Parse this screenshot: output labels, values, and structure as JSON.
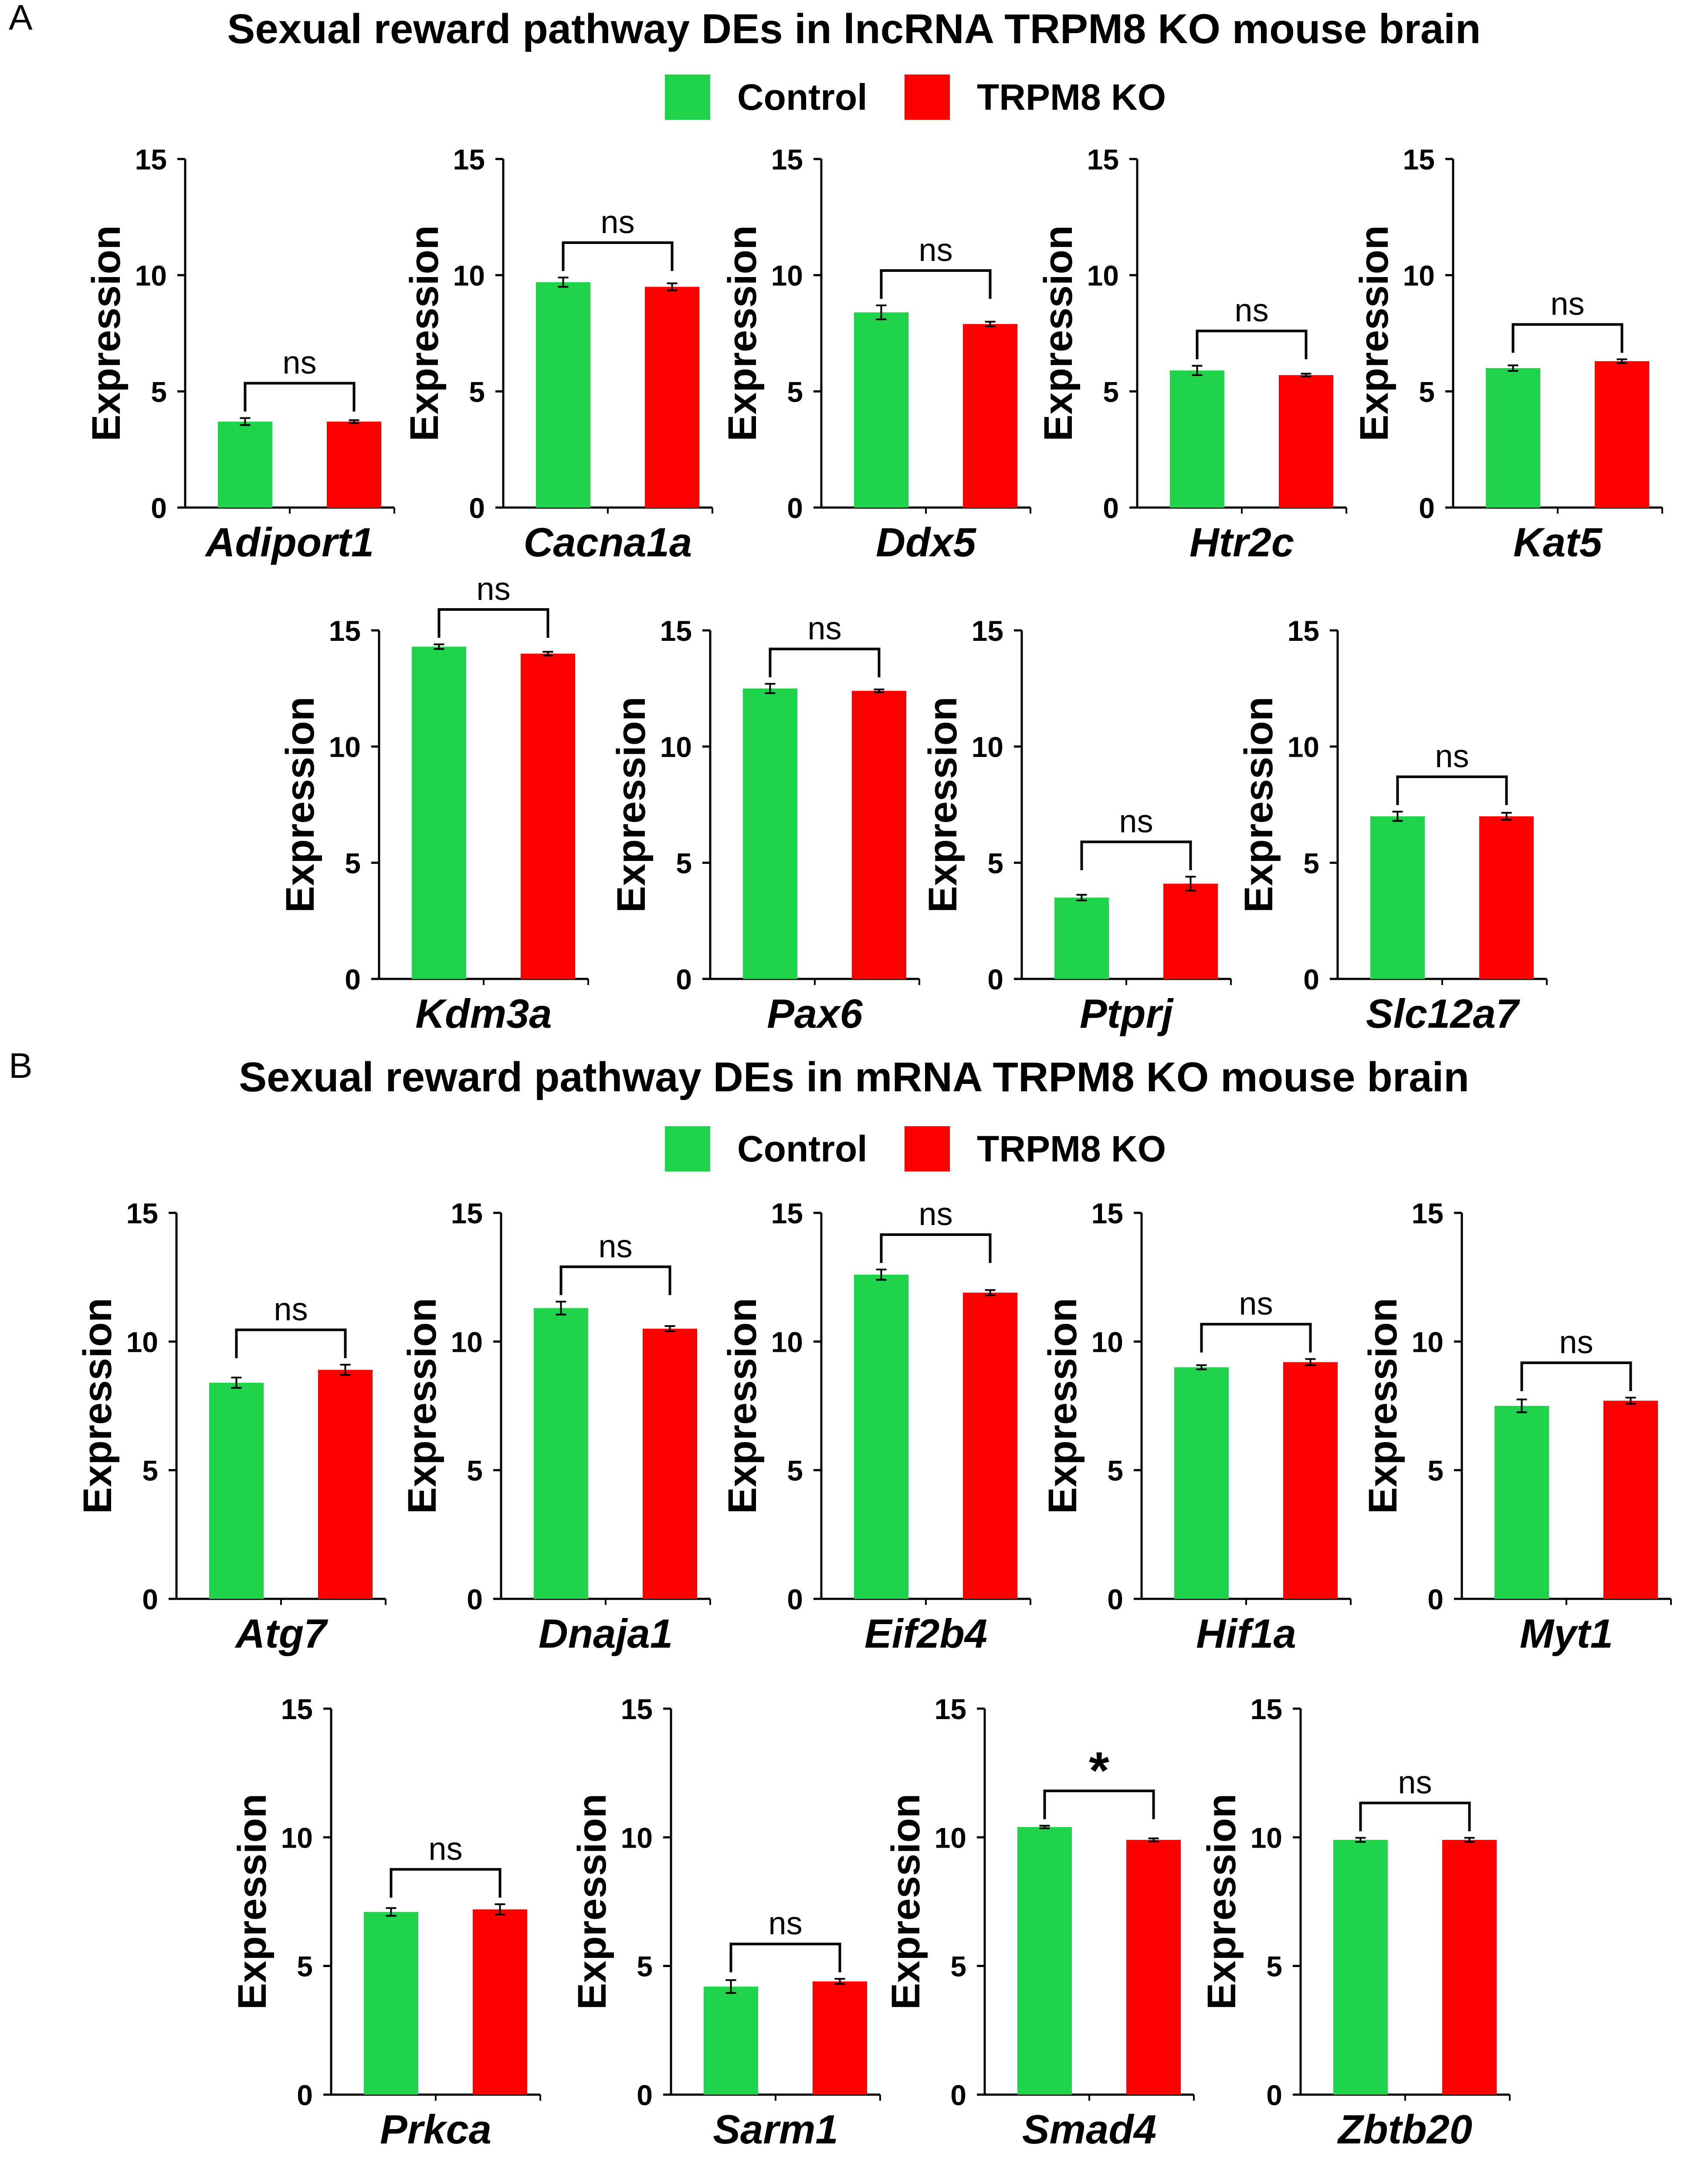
{
  "panels": [
    {
      "letter": "A",
      "title": "Sexual reward pathway DEs in lncRNA TRPM8 KO mouse brain",
      "legend": [
        {
          "label": "Control",
          "color": "#1fd34a"
        },
        {
          "label": "TRPM8 KO",
          "color": "#ff0000"
        }
      ]
    },
    {
      "letter": "B",
      "title": "Sexual reward pathway DEs in mRNA TRPM8 KO mouse brain",
      "legend": [
        {
          "label": "Control",
          "color": "#1fd34a"
        },
        {
          "label": "TRPM8 KO",
          "color": "#ff0000"
        }
      ]
    }
  ],
  "chart_data": [
    {
      "type": "bar",
      "panel": "A",
      "gene": "Adiport1",
      "ylabel": "Expression",
      "ylim": [
        0,
        15
      ],
      "yticks": [
        0,
        5,
        10,
        15
      ],
      "categories": [
        "Control",
        "TRPM8 KO"
      ],
      "values": [
        3.7,
        3.7
      ],
      "errors": [
        0.15,
        0.06
      ],
      "significance": "ns"
    },
    {
      "type": "bar",
      "panel": "A",
      "gene": "Cacna1a",
      "ylabel": "Expression",
      "ylim": [
        0,
        15
      ],
      "yticks": [
        0,
        5,
        10,
        15
      ],
      "categories": [
        "Control",
        "TRPM8 KO"
      ],
      "values": [
        9.7,
        9.5
      ],
      "errors": [
        0.2,
        0.15
      ],
      "significance": "ns"
    },
    {
      "type": "bar",
      "panel": "A",
      "gene": "Ddx5",
      "ylabel": "Expression",
      "ylim": [
        0,
        15
      ],
      "yticks": [
        0,
        5,
        10,
        15
      ],
      "categories": [
        "Control",
        "TRPM8 KO"
      ],
      "values": [
        8.4,
        7.9
      ],
      "errors": [
        0.3,
        0.1
      ],
      "significance": "ns"
    },
    {
      "type": "bar",
      "panel": "A",
      "gene": "Htr2c",
      "ylabel": "Expression",
      "ylim": [
        0,
        15
      ],
      "yticks": [
        0,
        5,
        10,
        15
      ],
      "categories": [
        "Control",
        "TRPM8 KO"
      ],
      "values": [
        5.9,
        5.7
      ],
      "errors": [
        0.2,
        0.06
      ],
      "significance": "ns"
    },
    {
      "type": "bar",
      "panel": "A",
      "gene": "Kat5",
      "ylabel": "Expression",
      "ylim": [
        0,
        15
      ],
      "yticks": [
        0,
        5,
        10,
        15
      ],
      "categories": [
        "Control",
        "TRPM8 KO"
      ],
      "values": [
        6.0,
        6.3
      ],
      "errors": [
        0.12,
        0.08
      ],
      "significance": "ns"
    },
    {
      "type": "bar",
      "panel": "A",
      "gene": "Kdm3a",
      "ylabel": "Expression",
      "ylim": [
        0,
        15
      ],
      "yticks": [
        0,
        5,
        10,
        15
      ],
      "categories": [
        "Control",
        "TRPM8 KO"
      ],
      "values": [
        14.3,
        14.0
      ],
      "errors": [
        0.1,
        0.08
      ],
      "significance": "ns"
    },
    {
      "type": "bar",
      "panel": "A",
      "gene": "Pax6",
      "ylabel": "Expression",
      "ylim": [
        0,
        15
      ],
      "yticks": [
        0,
        5,
        10,
        15
      ],
      "categories": [
        "Control",
        "TRPM8 KO"
      ],
      "values": [
        12.5,
        12.4
      ],
      "errors": [
        0.2,
        0.06
      ],
      "significance": "ns"
    },
    {
      "type": "bar",
      "panel": "A",
      "gene": "Ptprj",
      "ylabel": "Expression",
      "ylim": [
        0,
        15
      ],
      "yticks": [
        0,
        5,
        10,
        15
      ],
      "categories": [
        "Control",
        "TRPM8 KO"
      ],
      "values": [
        3.5,
        4.1
      ],
      "errors": [
        0.12,
        0.3
      ],
      "significance": "ns"
    },
    {
      "type": "bar",
      "panel": "A",
      "gene": "Slc12a7",
      "ylabel": "Expression",
      "ylim": [
        0,
        15
      ],
      "yticks": [
        0,
        5,
        10,
        15
      ],
      "categories": [
        "Control",
        "TRPM8 KO"
      ],
      "values": [
        7.0,
        7.0
      ],
      "errors": [
        0.2,
        0.15
      ],
      "significance": "ns"
    },
    {
      "type": "bar",
      "panel": "B",
      "gene": "Atg7",
      "ylabel": "Expression",
      "ylim": [
        0,
        15
      ],
      "yticks": [
        0,
        5,
        10,
        15
      ],
      "categories": [
        "Control",
        "TRPM8 KO"
      ],
      "values": [
        8.4,
        8.9
      ],
      "errors": [
        0.2,
        0.2
      ],
      "significance": "ns"
    },
    {
      "type": "bar",
      "panel": "B",
      "gene": "Dnaja1",
      "ylabel": "Expression",
      "ylim": [
        0,
        15
      ],
      "yticks": [
        0,
        5,
        10,
        15
      ],
      "categories": [
        "Control",
        "TRPM8 KO"
      ],
      "values": [
        11.3,
        10.5
      ],
      "errors": [
        0.25,
        0.1
      ],
      "significance": "ns"
    },
    {
      "type": "bar",
      "panel": "B",
      "gene": "Eif2b4",
      "ylabel": "Expression",
      "ylim": [
        0,
        15
      ],
      "yticks": [
        0,
        5,
        10,
        15
      ],
      "categories": [
        "Control",
        "TRPM8 KO"
      ],
      "values": [
        12.6,
        11.9
      ],
      "errors": [
        0.2,
        0.1
      ],
      "significance": "ns"
    },
    {
      "type": "bar",
      "panel": "B",
      "gene": "Hif1a",
      "ylabel": "Expression",
      "ylim": [
        0,
        15
      ],
      "yticks": [
        0,
        5,
        10,
        15
      ],
      "categories": [
        "Control",
        "TRPM8 KO"
      ],
      "values": [
        9.0,
        9.2
      ],
      "errors": [
        0.08,
        0.12
      ],
      "significance": "ns"
    },
    {
      "type": "bar",
      "panel": "B",
      "gene": "Myt1",
      "ylabel": "Expression",
      "ylim": [
        0,
        15
      ],
      "yticks": [
        0,
        5,
        10,
        15
      ],
      "categories": [
        "Control",
        "TRPM8 KO"
      ],
      "values": [
        7.5,
        7.7
      ],
      "errors": [
        0.25,
        0.12
      ],
      "significance": "ns"
    },
    {
      "type": "bar",
      "panel": "B",
      "gene": "Prkca",
      "ylabel": "Expression",
      "ylim": [
        0,
        15
      ],
      "yticks": [
        0,
        5,
        10,
        15
      ],
      "categories": [
        "Control",
        "TRPM8 KO"
      ],
      "values": [
        7.1,
        7.2
      ],
      "errors": [
        0.15,
        0.2
      ],
      "significance": "ns"
    },
    {
      "type": "bar",
      "panel": "B",
      "gene": "Sarm1",
      "ylabel": "Expression",
      "ylim": [
        0,
        15
      ],
      "yticks": [
        0,
        5,
        10,
        15
      ],
      "categories": [
        "Control",
        "TRPM8 KO"
      ],
      "values": [
        4.2,
        4.4
      ],
      "errors": [
        0.25,
        0.1
      ],
      "significance": "ns"
    },
    {
      "type": "bar",
      "panel": "B",
      "gene": "Smad4",
      "ylabel": "Expression",
      "ylim": [
        0,
        15
      ],
      "yticks": [
        0,
        5,
        10,
        15
      ],
      "categories": [
        "Control",
        "TRPM8 KO"
      ],
      "values": [
        10.4,
        9.9
      ],
      "errors": [
        0.05,
        0.06
      ],
      "significance": "*"
    },
    {
      "type": "bar",
      "panel": "B",
      "gene": "Zbtb20",
      "ylabel": "Expression",
      "ylim": [
        0,
        15
      ],
      "yticks": [
        0,
        5,
        10,
        15
      ],
      "categories": [
        "Control",
        "TRPM8 KO"
      ],
      "values": [
        9.9,
        9.9
      ],
      "errors": [
        0.08,
        0.08
      ],
      "significance": "ns"
    }
  ]
}
